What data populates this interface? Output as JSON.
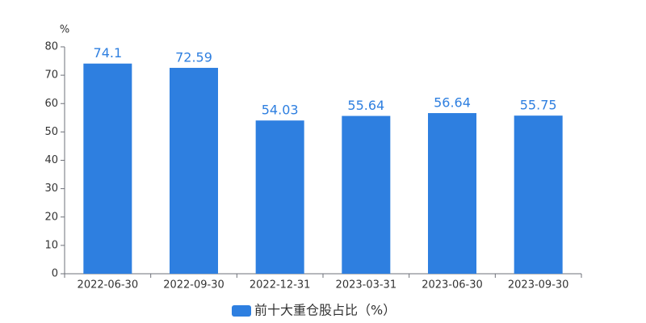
{
  "chart_data": {
    "type": "bar",
    "y_axis_label": "%",
    "categories": [
      "2022-06-30",
      "2022-09-30",
      "2022-12-31",
      "2023-03-31",
      "2023-06-30",
      "2023-09-30"
    ],
    "series": [
      {
        "name": "前十大重仓股占比（%）",
        "color": "#2e7fe0",
        "values": [
          74.1,
          72.59,
          54.03,
          55.64,
          56.64,
          55.75
        ]
      }
    ],
    "ylim": [
      0,
      80
    ],
    "yticks": [
      0,
      10,
      20,
      30,
      40,
      50,
      60,
      70,
      80
    ],
    "grid": false,
    "data_labels": true,
    "legend": "bottom"
  }
}
